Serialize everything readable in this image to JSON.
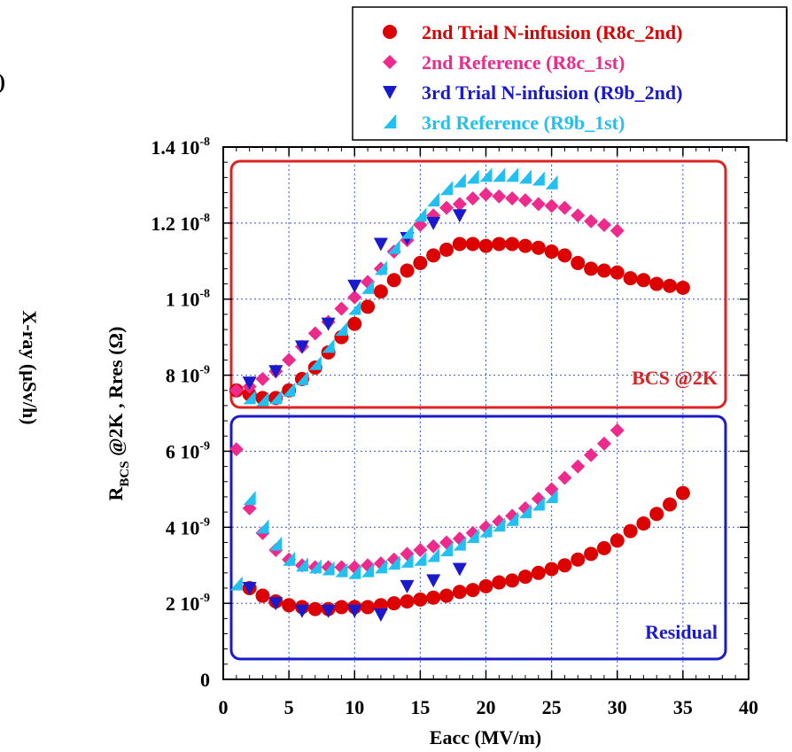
{
  "chart_data": {
    "type": "scatter",
    "xlabel": "Eacc (MV/m)",
    "ylabel": {
      "main": "R",
      "sub": "BCS",
      "rest": " @2K , Rres (Ω)"
    },
    "y2label": "X-ray (μSv/h)",
    "x_ticks": [
      "0",
      "5",
      "10",
      "15",
      "20",
      "25",
      "30",
      "35",
      "40"
    ],
    "y_ticks": [
      "0",
      "2 10-9",
      "4 10-9",
      "6 10-9",
      "8 10-9",
      "1 10-8",
      "1.2 10-8",
      "1.4 10-8"
    ],
    "xlim": [
      0,
      40
    ],
    "ylim": [
      0,
      1.4e-08
    ],
    "grid": true,
    "legend_position": "top-right",
    "region_labels": {
      "bcs": "BCS @2K",
      "residual": "Residual"
    },
    "series": [
      {
        "name": "2nd Trial N-infusion (R8c_2nd)",
        "marker": "circle",
        "color": "#dd0000",
        "bcs": {
          "x": [
            1,
            2,
            3,
            4,
            5,
            6,
            7,
            8,
            9,
            10,
            11,
            12,
            13,
            14,
            15,
            16,
            17,
            18,
            19,
            20,
            21,
            22,
            23,
            24,
            25,
            26,
            27,
            28,
            29,
            30,
            31,
            32,
            33,
            34,
            35
          ],
          "y": [
            7.6e-09,
            7.5e-09,
            7.4e-09,
            7.4e-09,
            7.6e-09,
            7.9e-09,
            8.2e-09,
            8.6e-09,
            9e-09,
            9.35e-09,
            9.8e-09,
            1.02e-08,
            1.05e-08,
            1.075e-08,
            1.095e-08,
            1.115e-08,
            1.13e-08,
            1.145e-08,
            1.145e-08,
            1.14e-08,
            1.145e-08,
            1.145e-08,
            1.14e-08,
            1.135e-08,
            1.125e-08,
            1.115e-08,
            1.095e-08,
            1.08e-08,
            1.075e-08,
            1.07e-08,
            1.055e-08,
            1.05e-08,
            1.04e-08,
            1.035e-08,
            1.03e-08
          ]
        },
        "residual": {
          "x": [
            2,
            3,
            4,
            5,
            6,
            7,
            8,
            9,
            10,
            11,
            12,
            13,
            14,
            15,
            16,
            17,
            18,
            19,
            20,
            21,
            22,
            23,
            24,
            25,
            26,
            27,
            28,
            29,
            30,
            31,
            32,
            33,
            34,
            35
          ],
          "y": [
            2.4e-09,
            2.2e-09,
            2.05e-09,
            1.95e-09,
            1.9e-09,
            1.85e-09,
            1.85e-09,
            1.9e-09,
            1.9e-09,
            1.9e-09,
            1.95e-09,
            2e-09,
            2.05e-09,
            2.1e-09,
            2.15e-09,
            2.2e-09,
            2.3e-09,
            2.35e-09,
            2.45e-09,
            2.55e-09,
            2.6e-09,
            2.7e-09,
            2.8e-09,
            2.9e-09,
            3e-09,
            3.15e-09,
            3.3e-09,
            3.45e-09,
            3.65e-09,
            3.9e-09,
            4.1e-09,
            4.35e-09,
            4.6e-09,
            4.9e-09
          ]
        }
      },
      {
        "name": "2nd Reference (R8c_1st)",
        "marker": "diamond",
        "color": "#ee2a8c",
        "bcs": {
          "x": [
            1,
            2,
            3,
            4,
            5,
            6,
            7,
            8,
            9,
            10,
            11,
            12,
            13,
            14,
            15,
            16,
            17,
            18,
            19,
            20,
            21,
            22,
            23,
            24,
            25,
            26,
            27,
            28,
            29,
            30
          ],
          "y": [
            7.6e-09,
            7.7e-09,
            7.9e-09,
            8.1e-09,
            8.4e-09,
            8.75e-09,
            9.1e-09,
            9.4e-09,
            9.75e-09,
            1.005e-08,
            1.045e-08,
            1.08e-08,
            1.125e-08,
            1.155e-08,
            1.195e-08,
            1.22e-08,
            1.24e-08,
            1.25e-08,
            1.265e-08,
            1.275e-08,
            1.27e-08,
            1.265e-08,
            1.26e-08,
            1.25e-08,
            1.245e-08,
            1.24e-08,
            1.22e-08,
            1.205e-08,
            1.195e-08,
            1.18e-08
          ]
        },
        "residual": {
          "x": [
            1,
            2,
            3,
            4,
            5,
            6,
            7,
            8,
            9,
            10,
            11,
            12,
            13,
            14,
            15,
            16,
            17,
            18,
            19,
            20,
            21,
            22,
            23,
            24,
            25,
            26,
            27,
            28,
            29,
            30
          ],
          "y": [
            6.05e-09,
            4.5e-09,
            3.85e-09,
            3.4e-09,
            3.15e-09,
            3e-09,
            2.95e-09,
            2.95e-09,
            2.95e-09,
            2.95e-09,
            3e-09,
            3.05e-09,
            3.15e-09,
            3.3e-09,
            3.4e-09,
            3.5e-09,
            3.6e-09,
            3.7e-09,
            3.85e-09,
            4e-09,
            4.15e-09,
            4.3e-09,
            4.5e-09,
            4.75e-09,
            5e-09,
            5.3e-09,
            5.6e-09,
            5.9e-09,
            6.2e-09,
            6.55e-09
          ]
        }
      },
      {
        "name": "3rd Trial N-infusion (R9b_2nd)",
        "marker": "triangle-down",
        "color": "#1a1acc",
        "bcs": {
          "x": [
            2,
            4,
            6,
            8,
            10,
            12,
            14,
            16,
            18
          ],
          "y": [
            7.8e-09,
            8.1e-09,
            8.75e-09,
            9.35e-09,
            1.035e-08,
            1.145e-08,
            1.16e-08,
            1.2e-08,
            1.22e-08
          ]
        },
        "residual": {
          "x": [
            2,
            4,
            6,
            8,
            10,
            12,
            14,
            16,
            18
          ],
          "y": [
            2.4e-09,
            2e-09,
            1.8e-09,
            1.8e-09,
            1.8e-09,
            1.7e-09,
            2.45e-09,
            2.6e-09,
            2.9e-09
          ]
        }
      },
      {
        "name": "3rd Reference (R9b_1st)",
        "marker": "triangle-flag",
        "color": "#22c0f0",
        "bcs": {
          "x": [
            2,
            3,
            4,
            5,
            6,
            7,
            8,
            9,
            10,
            11,
            12,
            13,
            14,
            15,
            16,
            17,
            18,
            19,
            20,
            21,
            22,
            23,
            24,
            25
          ],
          "y": [
            7.4e-09,
            7.35e-09,
            7.4e-09,
            7.6e-09,
            7.9e-09,
            8.3e-09,
            8.75e-09,
            9.2e-09,
            9.75e-09,
            1.03e-08,
            1.08e-08,
            1.135e-08,
            1.175e-08,
            1.22e-08,
            1.26e-08,
            1.29e-08,
            1.31e-08,
            1.32e-08,
            1.325e-08,
            1.325e-08,
            1.325e-08,
            1.32e-08,
            1.315e-08,
            1.305e-08
          ]
        },
        "residual": {
          "x": [
            1,
            2,
            3,
            4,
            5,
            6,
            7,
            8,
            9,
            10,
            11,
            12,
            13,
            14,
            15,
            16,
            17,
            18,
            19,
            20,
            21,
            22,
            23,
            24,
            25
          ],
          "y": [
            2.5e-09,
            4.75e-09,
            4e-09,
            3.55e-09,
            3.15e-09,
            3e-09,
            2.95e-09,
            2.9e-09,
            2.85e-09,
            2.8e-09,
            2.85e-09,
            2.95e-09,
            3.05e-09,
            3.1e-09,
            3.15e-09,
            3.25e-09,
            3.4e-09,
            3.55e-09,
            3.75e-09,
            3.9e-09,
            4.05e-09,
            4.2e-09,
            4.4e-09,
            4.6e-09,
            4.8e-09
          ]
        }
      }
    ]
  },
  "colors": {
    "bcs_box": "#dd2222",
    "residual_box": "#1a1acc",
    "axis": "#000000",
    "grid": "#3355cc"
  },
  "y2_partial_label": ")"
}
